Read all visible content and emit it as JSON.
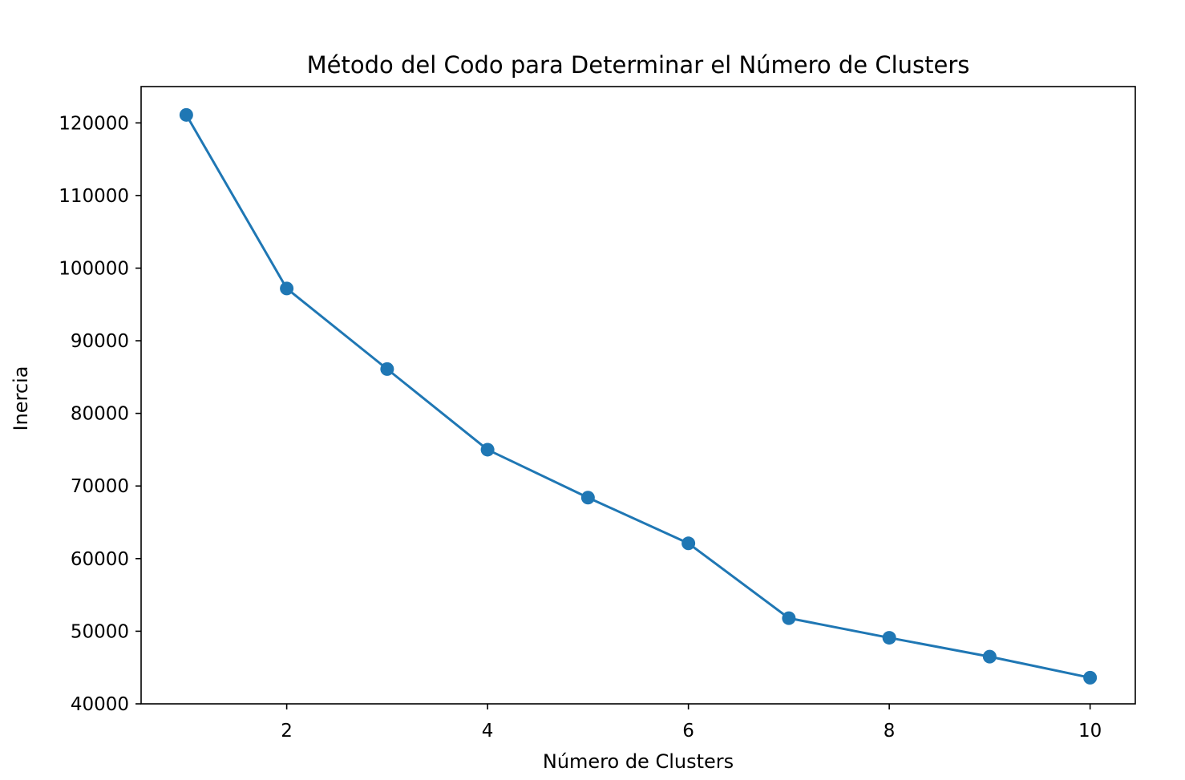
{
  "chart_data": {
    "type": "line",
    "title": "Método del Codo para Determinar el Número de Clusters",
    "xlabel": "Número de Clusters",
    "ylabel": "Inercia",
    "x": [
      1,
      2,
      3,
      4,
      5,
      6,
      7,
      8,
      9,
      10
    ],
    "series": [
      {
        "values": [
          121100,
          97200,
          86100,
          75000,
          68400,
          62100,
          51800,
          49100,
          46500,
          43600
        ],
        "color": "#1f77b4",
        "marker": "circle"
      }
    ],
    "xlim": [
      0.55,
      10.45
    ],
    "ylim": [
      40000,
      125000
    ],
    "xticks": [
      2,
      4,
      6,
      8,
      10
    ],
    "xtick_labels": [
      "2",
      "4",
      "6",
      "8",
      "10"
    ],
    "yticks": [
      40000,
      50000,
      60000,
      70000,
      80000,
      90000,
      100000,
      110000,
      120000
    ],
    "ytick_labels": [
      "40000",
      "50000",
      "60000",
      "70000",
      "80000",
      "90000",
      "100000",
      "110000",
      "120000"
    ],
    "grid": false,
    "legend": false
  }
}
